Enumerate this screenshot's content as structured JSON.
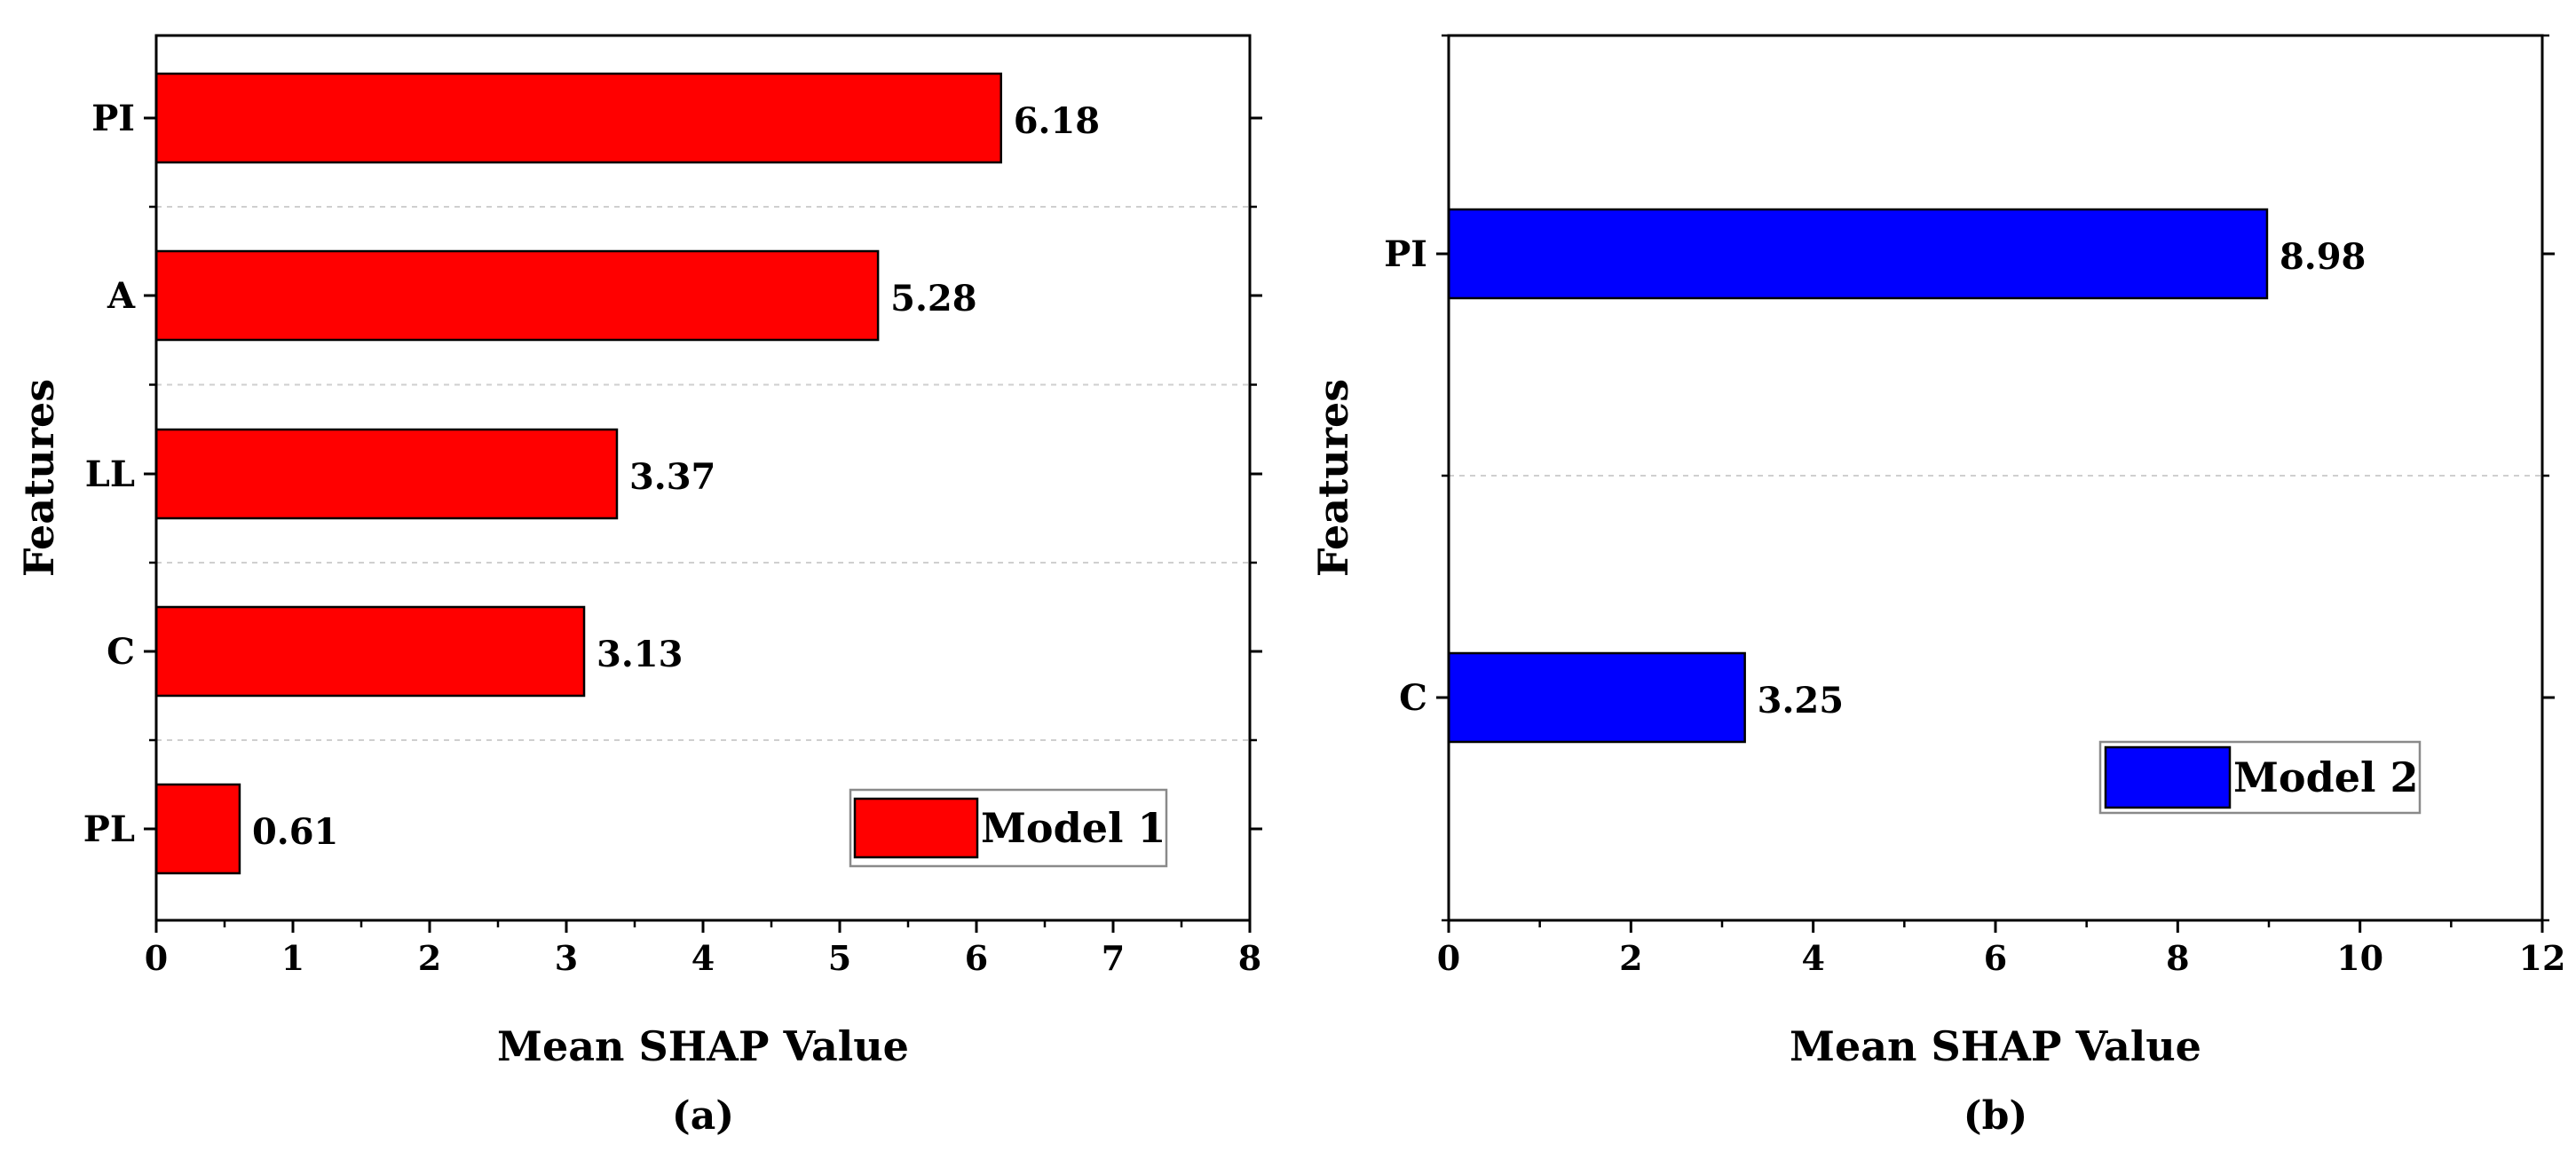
{
  "chart_data": [
    {
      "type": "bar",
      "orientation": "horizontal",
      "panel_label": "(a)",
      "categories": [
        "PI",
        "A",
        "LL",
        "C",
        "PL"
      ],
      "values": [
        6.18,
        5.28,
        3.37,
        3.13,
        0.61
      ],
      "value_labels": [
        "6.18",
        "5.28",
        "3.37",
        "3.13",
        "0.61"
      ],
      "xlabel": "Mean SHAP Value",
      "ylabel": "Features",
      "xlim": [
        0,
        8
      ],
      "xticks": [
        0,
        1,
        2,
        3,
        4,
        5,
        6,
        7,
        8
      ],
      "xtick_labels": [
        "0",
        "1",
        "2",
        "3",
        "4",
        "5",
        "6",
        "7",
        "8"
      ],
      "grid": "horizontal dashed between categories",
      "legend": {
        "label": "Model 1",
        "position": "bottom-right"
      },
      "color": "#ff0000"
    },
    {
      "type": "bar",
      "orientation": "horizontal",
      "panel_label": "(b)",
      "categories": [
        "PI",
        "C"
      ],
      "values": [
        8.98,
        3.25
      ],
      "value_labels": [
        "8.98",
        "3.25"
      ],
      "xlabel": "Mean SHAP Value",
      "ylabel": "Features",
      "xlim": [
        0,
        12
      ],
      "xticks": [
        0,
        2,
        4,
        6,
        8,
        10,
        12
      ],
      "xtick_labels": [
        "0",
        "2",
        "4",
        "6",
        "8",
        "10",
        "12"
      ],
      "grid": "horizontal dashed between categories",
      "legend": {
        "label": "Model 2",
        "position": "bottom-right"
      },
      "color": "#0000ff"
    }
  ]
}
